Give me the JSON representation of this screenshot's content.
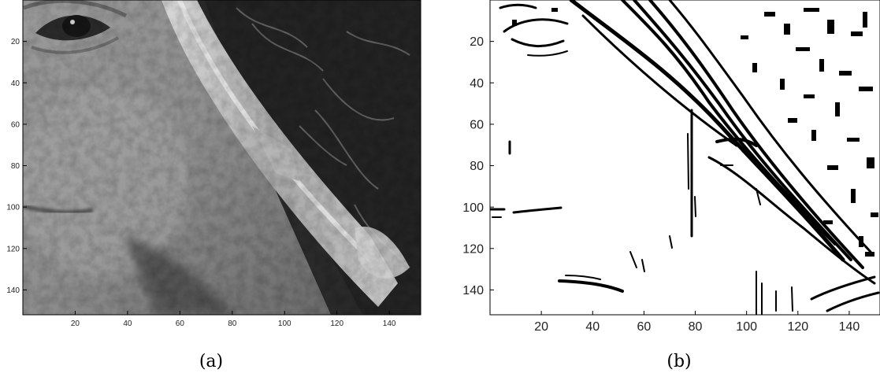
{
  "panels": [
    {
      "id": "a",
      "caption": "(a)",
      "content": "grayscale-face-crop",
      "x_ticks": [
        "20",
        "40",
        "60",
        "80",
        "100",
        "120",
        "140"
      ],
      "y_ticks": [
        "20",
        "40",
        "60",
        "80",
        "100",
        "120",
        "140"
      ],
      "x_range": [
        0,
        152
      ],
      "y_range": [
        0,
        152
      ]
    },
    {
      "id": "b",
      "caption": "(b)",
      "content": "binary-edge-map",
      "x_ticks": [
        "20",
        "40",
        "60",
        "80",
        "100",
        "120",
        "140"
      ],
      "y_ticks": [
        "20",
        "40",
        "60",
        "80",
        "100",
        "120",
        "140"
      ],
      "x_range": [
        0,
        152
      ],
      "y_range": [
        0,
        152
      ]
    }
  ]
}
